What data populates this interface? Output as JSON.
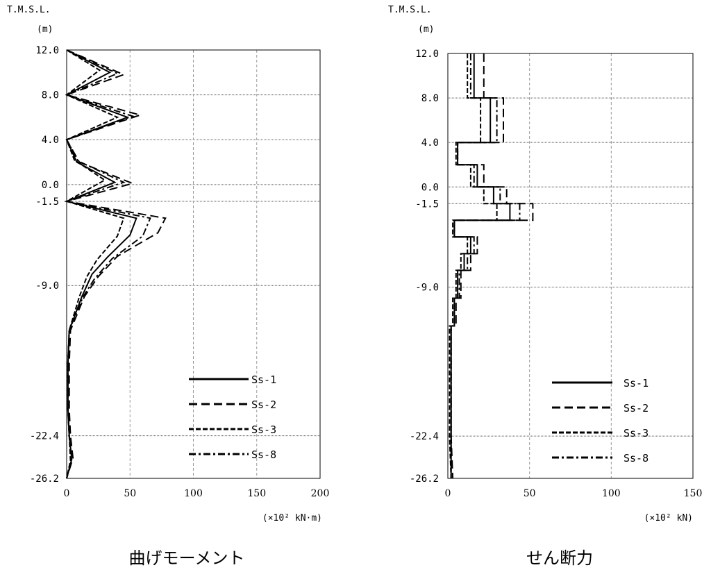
{
  "charts": [
    {
      "caption": "曲げモーメント",
      "elevation_label": "T.M.S.L.",
      "elevation_unit": "(m)",
      "x_unit": "(×10² kN·m)",
      "xlim": [
        0,
        200
      ],
      "x_ticks": [
        "0",
        "50",
        "100",
        "150",
        "200"
      ],
      "y_ticks": [
        "12.0",
        "8.0",
        "4.0",
        "0.0",
        "-1.5",
        "-9.0",
        "-22.4",
        "-26.2"
      ]
    },
    {
      "caption": "せん断力",
      "elevation_label": "T.M.S.L.",
      "elevation_unit": "(m)",
      "x_unit": "(×10² kN)",
      "xlim": [
        0,
        150
      ],
      "x_ticks": [
        "0",
        "50",
        "100",
        "150"
      ],
      "y_ticks": [
        "12.0",
        "8.0",
        "4.0",
        "0.0",
        "-1.5",
        "-9.0",
        "-22.4",
        "-26.2"
      ]
    }
  ],
  "chart_data": [
    {
      "type": "line",
      "title": "曲げモーメント",
      "xlabel": "(×10² kN·m)",
      "ylabel": "T.M.S.L. (m)",
      "xlim": [
        0,
        200
      ],
      "ylim": [
        -26.2,
        12.0
      ],
      "y_tick_values": [
        12.0,
        8.0,
        4.0,
        0.0,
        -1.5,
        -9.0,
        -22.4,
        -26.2
      ],
      "x_grid": true,
      "legend_position": "bottom-right",
      "series": [
        {
          "name": "Ss-1",
          "style": "solid",
          "points": [
            [
              0,
              12.0
            ],
            [
              34,
              10.0
            ],
            [
              0,
              8.0
            ],
            [
              48,
              6.0
            ],
            [
              0,
              4.0
            ],
            [
              8,
              2.0
            ],
            [
              38,
              0.2
            ],
            [
              0,
              -1.5
            ],
            [
              55,
              -3.0
            ],
            [
              50,
              -4.5
            ],
            [
              32,
              -6.5
            ],
            [
              20,
              -8.0
            ],
            [
              12,
              -10.0
            ],
            [
              2,
              -13.0
            ],
            [
              1,
              -16
            ],
            [
              1,
              -20
            ],
            [
              2,
              -22.4
            ],
            [
              4,
              -24.5
            ],
            [
              0,
              -26.2
            ]
          ]
        },
        {
          "name": "Ss-2",
          "style": "dashed",
          "points": [
            [
              0,
              12.0
            ],
            [
              45,
              9.8
            ],
            [
              0,
              8.0
            ],
            [
              58,
              6.2
            ],
            [
              0,
              4.0
            ],
            [
              10,
              2.0
            ],
            [
              52,
              0.1
            ],
            [
              0,
              -1.5
            ],
            [
              78,
              -3.0
            ],
            [
              72,
              -4.3
            ],
            [
              40,
              -6.4
            ],
            [
              25,
              -8.2
            ],
            [
              14,
              -10.0
            ],
            [
              3,
              -13.0
            ],
            [
              2,
              -16
            ],
            [
              2,
              -20
            ],
            [
              3,
              -22.4
            ],
            [
              5,
              -24.4
            ],
            [
              0,
              -26.2
            ]
          ]
        },
        {
          "name": "Ss-3",
          "style": "short-dashed",
          "points": [
            [
              0,
              12.0
            ],
            [
              26,
              10.2
            ],
            [
              0,
              8.0
            ],
            [
              40,
              6.0
            ],
            [
              0,
              4.0
            ],
            [
              6,
              2.2
            ],
            [
              30,
              0.4
            ],
            [
              0,
              -1.5
            ],
            [
              45,
              -3.0
            ],
            [
              40,
              -4.6
            ],
            [
              24,
              -6.7
            ],
            [
              16,
              -8.2
            ],
            [
              10,
              -10.0
            ],
            [
              2,
              -13.0
            ],
            [
              1,
              -16
            ],
            [
              1,
              -20
            ],
            [
              2,
              -22.4
            ],
            [
              3,
              -24.6
            ],
            [
              0,
              -26.2
            ]
          ]
        },
        {
          "name": "Ss-8",
          "style": "dash-dot",
          "points": [
            [
              0,
              12.0
            ],
            [
              40,
              9.9
            ],
            [
              0,
              8.0
            ],
            [
              52,
              6.1
            ],
            [
              0,
              4.0
            ],
            [
              9,
              2.1
            ],
            [
              45,
              0.2
            ],
            [
              0,
              -1.5
            ],
            [
              66,
              -3.0
            ],
            [
              60,
              -4.6
            ],
            [
              36,
              -6.6
            ],
            [
              22,
              -8.4
            ],
            [
              13,
              -10.0
            ],
            [
              2,
              -13.0
            ],
            [
              1,
              -16
            ],
            [
              1,
              -20
            ],
            [
              2,
              -22.4
            ],
            [
              4,
              -24.5
            ],
            [
              0,
              -26.2
            ]
          ]
        }
      ]
    },
    {
      "type": "line",
      "title": "せん断力",
      "xlabel": "(×10² kN)",
      "ylabel": "T.M.S.L. (m)",
      "xlim": [
        0,
        150
      ],
      "ylim": [
        -26.2,
        12.0
      ],
      "y_tick_values": [
        12.0,
        8.0,
        4.0,
        0.0,
        -1.5,
        -9.0,
        -22.4,
        -26.2
      ],
      "x_grid": true,
      "legend_position": "bottom-right",
      "series": [
        {
          "name": "Ss-1",
          "style": "solid",
          "points": [
            [
              16,
              12.0
            ],
            [
              16,
              8.0
            ],
            [
              26,
              8.0
            ],
            [
              26,
              4.0
            ],
            [
              6,
              4.0
            ],
            [
              6,
              2.0
            ],
            [
              18,
              2.0
            ],
            [
              18,
              0.0
            ],
            [
              28,
              0.0
            ],
            [
              28,
              -1.5
            ],
            [
              38,
              -1.5
            ],
            [
              38,
              -3.0
            ],
            [
              4,
              -3.0
            ],
            [
              4,
              -4.5
            ],
            [
              14,
              -4.5
            ],
            [
              14,
              -6.0
            ],
            [
              10,
              -6.0
            ],
            [
              10,
              -7.5
            ],
            [
              6,
              -7.5
            ],
            [
              6,
              -10.0
            ],
            [
              4,
              -10.0
            ],
            [
              4,
              -12.5
            ],
            [
              2,
              -12.5
            ],
            [
              2,
              -22.4
            ],
            [
              2,
              -26.2
            ]
          ]
        },
        {
          "name": "Ss-2",
          "style": "dashed",
          "points": [
            [
              22,
              12.0
            ],
            [
              22,
              8.0
            ],
            [
              34,
              8.0
            ],
            [
              34,
              4.0
            ],
            [
              6,
              4.0
            ],
            [
              6,
              2.0
            ],
            [
              22,
              2.0
            ],
            [
              22,
              0.0
            ],
            [
              36,
              0.0
            ],
            [
              36,
              -1.5
            ],
            [
              52,
              -1.5
            ],
            [
              52,
              -3.0
            ],
            [
              4,
              -3.0
            ],
            [
              4,
              -4.5
            ],
            [
              18,
              -4.5
            ],
            [
              18,
              -6.0
            ],
            [
              14,
              -6.0
            ],
            [
              14,
              -7.5
            ],
            [
              8,
              -7.5
            ],
            [
              8,
              -10.0
            ],
            [
              5,
              -10.0
            ],
            [
              5,
              -12.5
            ],
            [
              2,
              -12.5
            ],
            [
              2,
              -22.4
            ],
            [
              3,
              -26.2
            ]
          ]
        },
        {
          "name": "Ss-3",
          "style": "short-dashed",
          "points": [
            [
              12,
              12.0
            ],
            [
              12,
              8.0
            ],
            [
              20,
              8.0
            ],
            [
              20,
              4.0
            ],
            [
              5,
              4.0
            ],
            [
              5,
              2.0
            ],
            [
              14,
              2.0
            ],
            [
              14,
              0.0
            ],
            [
              22,
              0.0
            ],
            [
              22,
              -1.5
            ],
            [
              30,
              -1.5
            ],
            [
              30,
              -3.0
            ],
            [
              3,
              -3.0
            ],
            [
              3,
              -4.5
            ],
            [
              12,
              -4.5
            ],
            [
              12,
              -6.0
            ],
            [
              8,
              -6.0
            ],
            [
              8,
              -7.5
            ],
            [
              5,
              -7.5
            ],
            [
              5,
              -10.0
            ],
            [
              3,
              -10.0
            ],
            [
              3,
              -12.5
            ],
            [
              1,
              -12.5
            ],
            [
              1,
              -22.4
            ],
            [
              2,
              -26.2
            ]
          ]
        },
        {
          "name": "Ss-8",
          "style": "dash-dot",
          "points": [
            [
              14,
              12.0
            ],
            [
              14,
              8.0
            ],
            [
              30,
              8.0
            ],
            [
              30,
              4.0
            ],
            [
              6,
              4.0
            ],
            [
              6,
              2.0
            ],
            [
              16,
              2.0
            ],
            [
              16,
              0.0
            ],
            [
              32,
              0.0
            ],
            [
              32,
              -1.5
            ],
            [
              44,
              -1.5
            ],
            [
              44,
              -3.0
            ],
            [
              4,
              -3.0
            ],
            [
              4,
              -4.5
            ],
            [
              16,
              -4.5
            ],
            [
              16,
              -6.0
            ],
            [
              12,
              -6.0
            ],
            [
              12,
              -7.5
            ],
            [
              7,
              -7.5
            ],
            [
              7,
              -10.0
            ],
            [
              4,
              -10.0
            ],
            [
              4,
              -12.5
            ],
            [
              2,
              -12.5
            ],
            [
              2,
              -22.4
            ],
            [
              2,
              -26.2
            ]
          ]
        }
      ]
    }
  ]
}
